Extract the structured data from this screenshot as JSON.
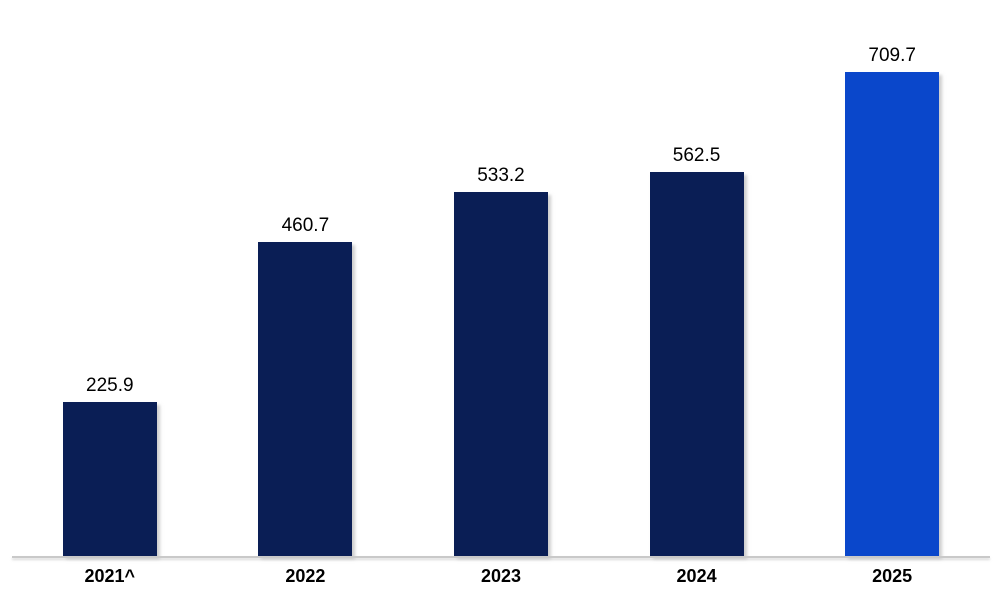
{
  "chart_data": {
    "type": "bar",
    "title": "",
    "xlabel": "",
    "ylabel": "",
    "categories": [
      "2021^",
      "2022",
      "2023",
      "2024",
      "2025"
    ],
    "values": [
      225.9,
      460.7,
      533.2,
      562.5,
      709.7
    ],
    "data_labels_shown": true,
    "grid": false,
    "legend": "none",
    "ylim": [
      0,
      815
    ],
    "bar_color": "#0a1e55",
    "highlight_color": "#0a47cb",
    "highlight_index": 4,
    "axis_line_color": "#c9c9c9",
    "label_color": "#000000"
  }
}
